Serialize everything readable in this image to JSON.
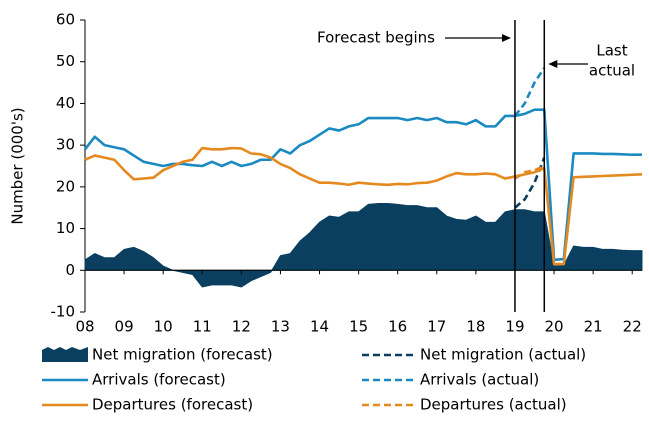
{
  "chart_data": {
    "type": "line",
    "ylabel": "Number (000's)",
    "xlim": [
      2008,
      2022.25
    ],
    "ylim": [
      -10,
      60
    ],
    "yticks": [
      -10,
      0,
      10,
      20,
      30,
      40,
      50,
      60
    ],
    "xticks": [
      {
        "value": 2008,
        "label": "08"
      },
      {
        "value": 2009,
        "label": "09"
      },
      {
        "value": 2010,
        "label": "10"
      },
      {
        "value": 2011,
        "label": "11"
      },
      {
        "value": 2012,
        "label": "12"
      },
      {
        "value": 2013,
        "label": "13"
      },
      {
        "value": 2014,
        "label": "14"
      },
      {
        "value": 2015,
        "label": "15"
      },
      {
        "value": 2016,
        "label": "16"
      },
      {
        "value": 2017,
        "label": "17"
      },
      {
        "value": 2018,
        "label": "18"
      },
      {
        "value": 2019,
        "label": "19"
      },
      {
        "value": 2020,
        "label": "20"
      },
      {
        "value": 2021,
        "label": "21"
      },
      {
        "value": 2022,
        "label": "22"
      }
    ],
    "annotations": [
      {
        "text": "Forecast begins",
        "x": 2019.0
      },
      {
        "text": [
          "Last",
          "actual"
        ],
        "x": 2019.75
      }
    ],
    "x": [
      2008,
      2008.25,
      2008.5,
      2008.75,
      2009,
      2009.25,
      2009.5,
      2009.75,
      2010,
      2010.25,
      2010.5,
      2010.75,
      2011,
      2011.25,
      2011.5,
      2011.75,
      2012,
      2012.25,
      2012.5,
      2012.75,
      2013,
      2013.25,
      2013.5,
      2013.75,
      2014,
      2014.25,
      2014.5,
      2014.75,
      2015,
      2015.25,
      2015.5,
      2015.75,
      2016,
      2016.25,
      2016.5,
      2016.75,
      2017,
      2017.25,
      2017.5,
      2017.75,
      2018,
      2018.25,
      2018.5,
      2018.75,
      2019,
      2019.25,
      2019.5,
      2019.75,
      2020,
      2020.25,
      2020.5,
      2020.75,
      2021,
      2021.25,
      2021.5,
      2021.75,
      2022,
      2022.25
    ],
    "series": [
      {
        "name": "Net migration (forecast)",
        "style": "area",
        "color": "#0b3f60",
        "values": [
          2.5,
          4,
          3,
          3,
          5,
          5.5,
          4.5,
          3,
          1,
          0,
          -0.5,
          -1,
          -4,
          -3.5,
          -3.5,
          -3.5,
          -4,
          -2.5,
          -1.5,
          -0.5,
          3.5,
          4,
          7,
          9,
          11.5,
          13,
          12.7,
          14,
          14,
          15.8,
          16,
          16,
          15.8,
          15.5,
          15.5,
          15,
          15,
          13,
          12.2,
          12,
          13,
          11.5,
          11.5,
          14,
          14.5,
          14.5,
          14,
          14,
          1,
          1.2,
          5.8,
          5.5,
          5.5,
          5,
          5,
          4.8,
          4.7,
          4.7
        ]
      },
      {
        "name": "Net migration (actual)",
        "style": "dashed",
        "color": "#0b3f60",
        "values": [
          null,
          null,
          null,
          null,
          null,
          null,
          null,
          null,
          null,
          null,
          null,
          null,
          null,
          null,
          null,
          null,
          null,
          null,
          null,
          null,
          null,
          null,
          null,
          null,
          null,
          null,
          null,
          null,
          null,
          null,
          null,
          null,
          null,
          null,
          null,
          null,
          null,
          null,
          null,
          null,
          null,
          null,
          null,
          null,
          15,
          17,
          21,
          27,
          null,
          null,
          null,
          null,
          null,
          null,
          null,
          null,
          null,
          null
        ]
      },
      {
        "name": "Arrivals (forecast)",
        "style": "solid",
        "color": "#1b8ac2",
        "values": [
          29,
          32,
          30,
          29.5,
          29,
          27.5,
          26,
          25.5,
          25,
          25.5,
          25.5,
          25.2,
          25,
          26,
          25,
          26,
          25,
          25.5,
          26.5,
          26.5,
          29,
          28,
          30,
          31,
          32.5,
          34,
          33.5,
          34.5,
          35,
          36.5,
          36.5,
          36.5,
          36.5,
          36,
          36.5,
          36,
          36.5,
          35.5,
          35.5,
          35,
          36,
          34.5,
          34.5,
          37,
          37,
          37.5,
          38.5,
          38.5,
          2.5,
          2.7,
          28,
          28,
          28,
          27.9,
          27.9,
          27.8,
          27.7,
          27.7
        ]
      },
      {
        "name": "Arrivals (actual)",
        "style": "dashed",
        "color": "#1b8ac2",
        "values": [
          null,
          null,
          null,
          null,
          null,
          null,
          null,
          null,
          null,
          null,
          null,
          null,
          null,
          null,
          null,
          null,
          null,
          null,
          null,
          null,
          null,
          null,
          null,
          null,
          null,
          null,
          null,
          null,
          null,
          null,
          null,
          null,
          null,
          null,
          null,
          null,
          null,
          null,
          null,
          null,
          null,
          null,
          null,
          null,
          37,
          40,
          45,
          48.5,
          null,
          null,
          null,
          null,
          null,
          null,
          null,
          null,
          null,
          null
        ]
      },
      {
        "name": "Departures (forecast)",
        "style": "solid",
        "color": "#e58a1f",
        "values": [
          26.5,
          27.5,
          27,
          26.5,
          24,
          21.8,
          22,
          22.2,
          24,
          25,
          26,
          26.5,
          29.3,
          29,
          29,
          29.3,
          29.2,
          28,
          27.8,
          27,
          25.5,
          24.5,
          23,
          22,
          21,
          21,
          20.8,
          20.5,
          21,
          20.8,
          20.6,
          20.5,
          20.7,
          20.6,
          20.9,
          21,
          21.5,
          22.5,
          23.3,
          23,
          23,
          23.2,
          23,
          22,
          22.5,
          23,
          23.5,
          24.5,
          1.5,
          1.5,
          22.3,
          22.4,
          22.5,
          22.6,
          22.7,
          22.8,
          22.9,
          23
        ]
      },
      {
        "name": "Departures (actual)",
        "style": "dashed",
        "color": "#e58a1f",
        "values": [
          null,
          null,
          null,
          null,
          null,
          null,
          null,
          null,
          null,
          null,
          null,
          null,
          null,
          null,
          null,
          null,
          null,
          null,
          null,
          null,
          null,
          null,
          null,
          null,
          null,
          null,
          null,
          null,
          null,
          null,
          null,
          null,
          null,
          null,
          null,
          null,
          null,
          null,
          null,
          null,
          null,
          null,
          null,
          null,
          22,
          23.5,
          24,
          25,
          null,
          null,
          null,
          null,
          null,
          null,
          null,
          null,
          null,
          null
        ]
      }
    ]
  }
}
